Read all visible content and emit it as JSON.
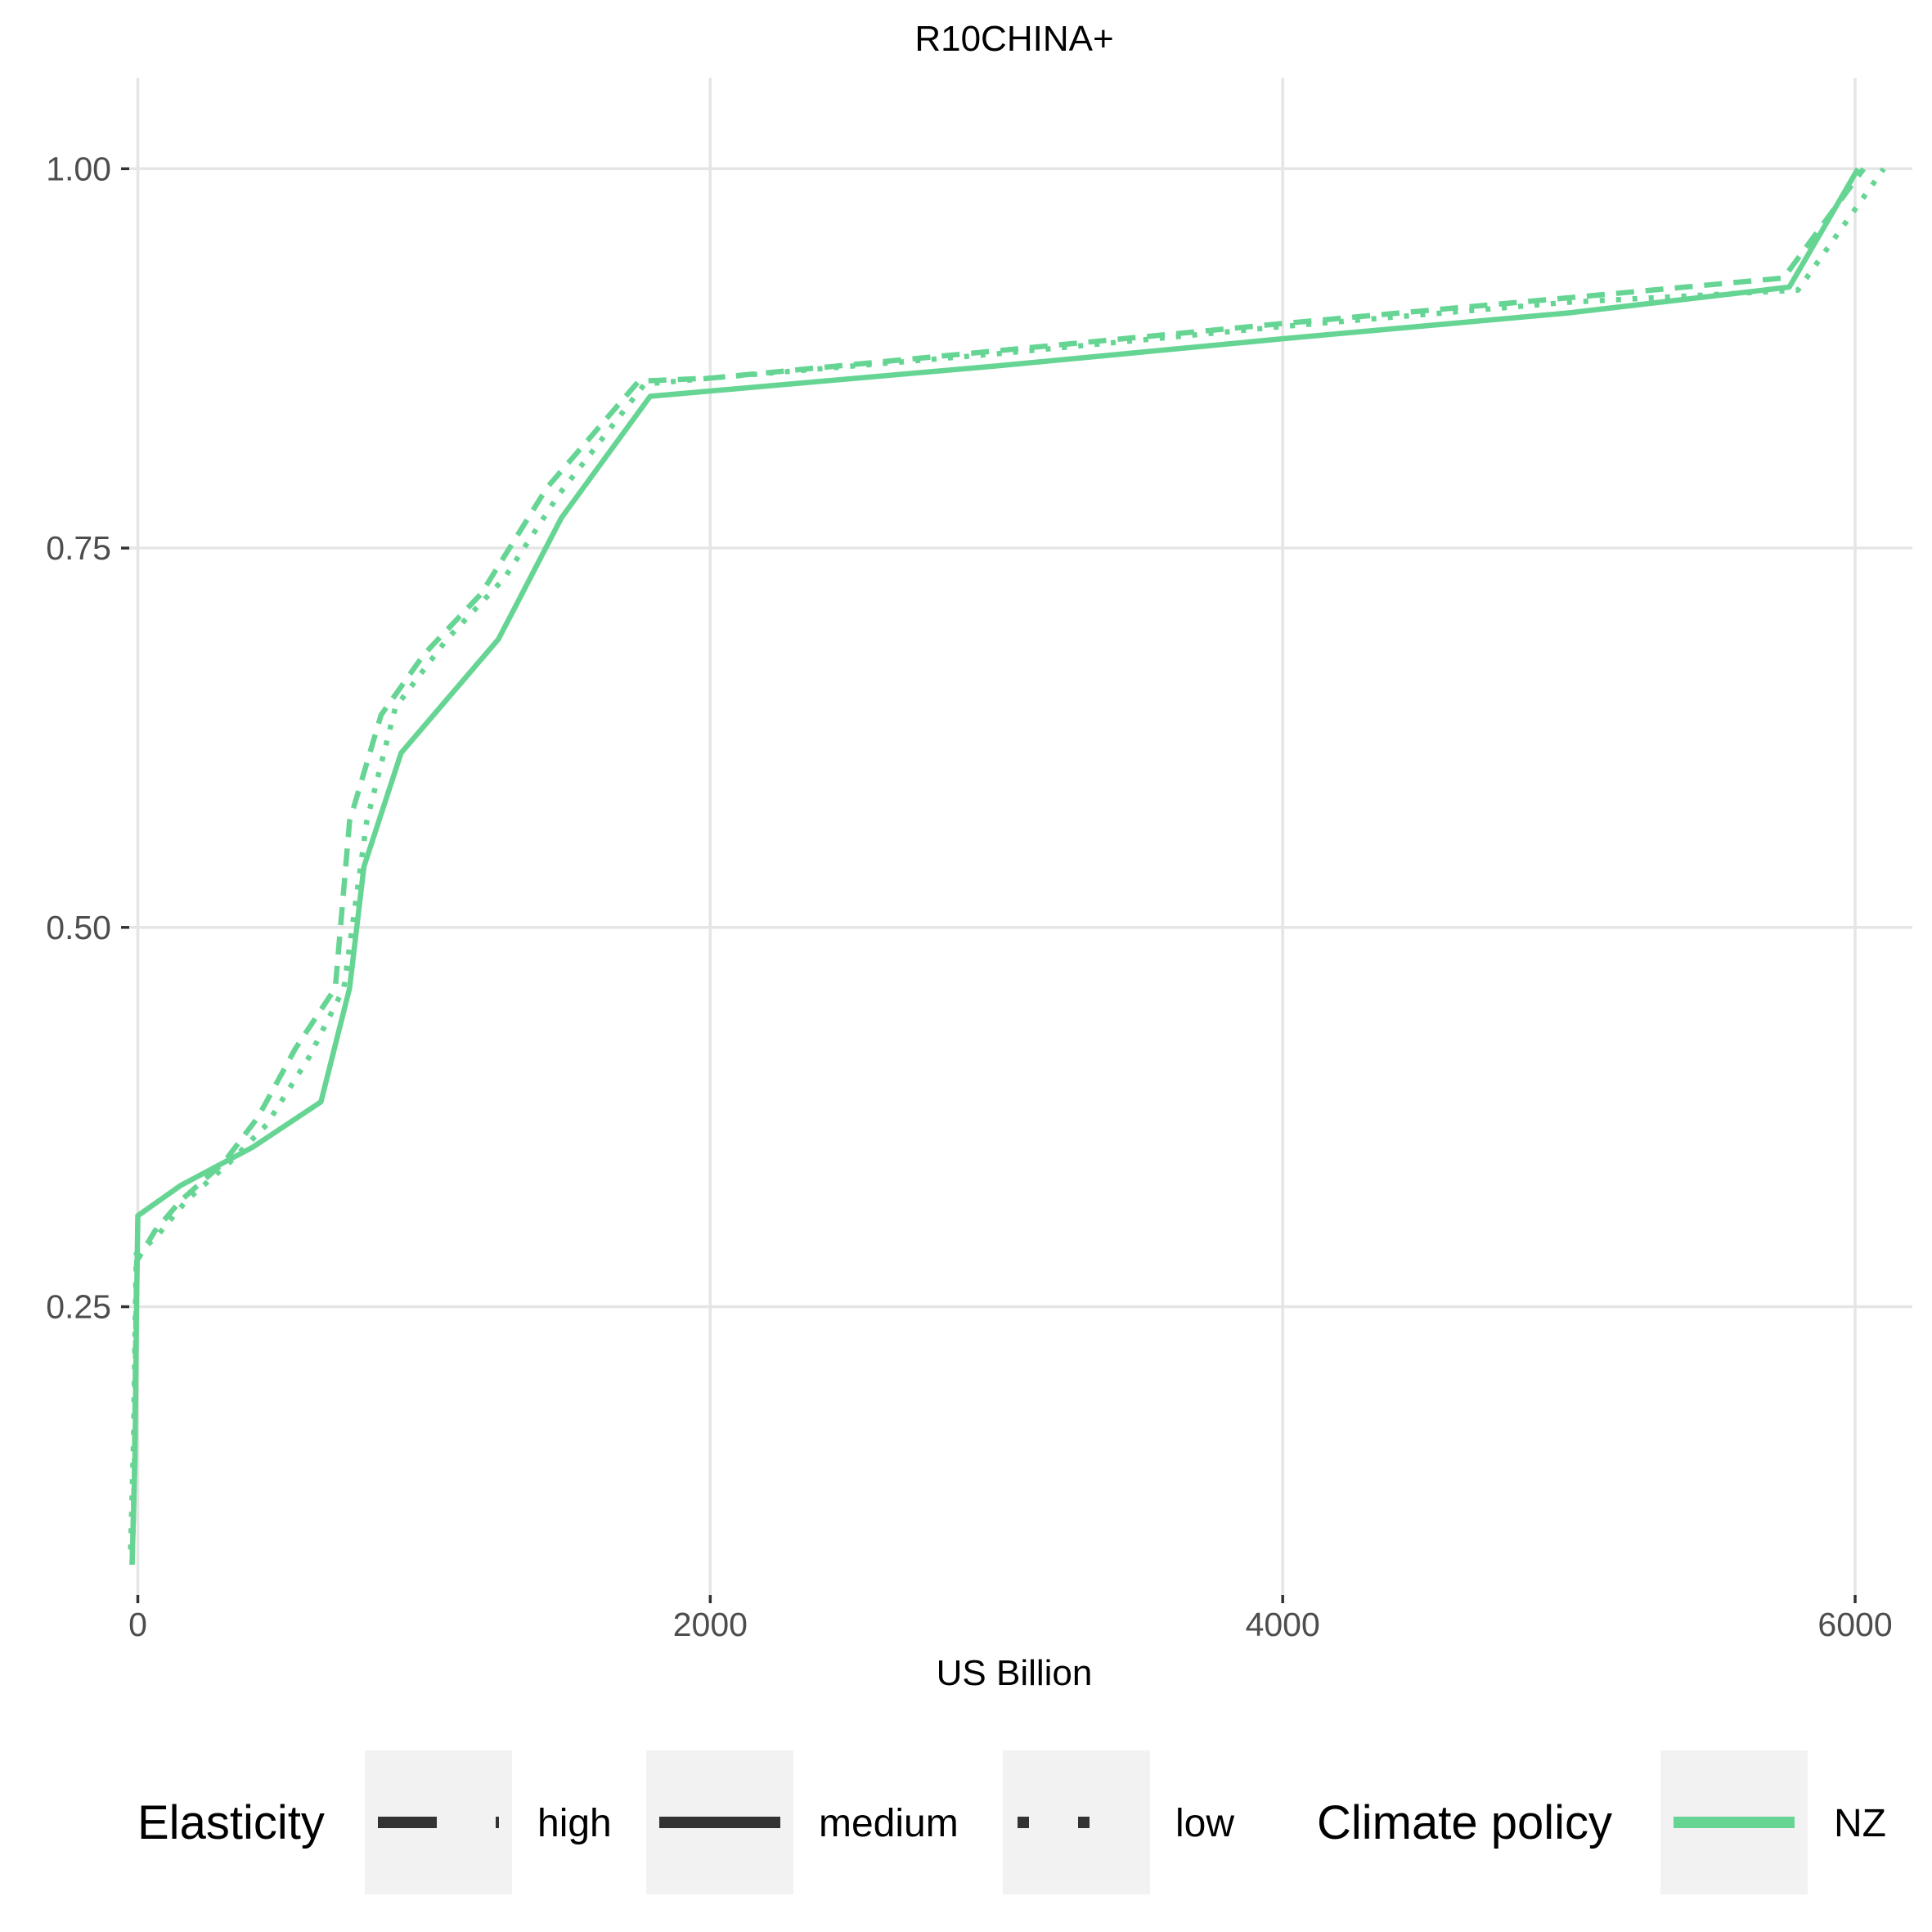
{
  "chart_data": {
    "type": "line",
    "title": "R10CHINA+",
    "xlabel": "US Billion",
    "ylabel": "",
    "xlim": [
      -30,
      6200
    ],
    "ylim": [
      0.06,
      1.06
    ],
    "x_ticks": [
      0,
      2000,
      4000,
      6000
    ],
    "x_tick_labels": [
      "0",
      "2000",
      "4000",
      "6000"
    ],
    "y_ticks": [
      0.25,
      0.5,
      0.75,
      1.0
    ],
    "y_tick_labels": [
      "0.25",
      "0.50",
      "0.75",
      "1.00"
    ],
    "grid": true,
    "legend_position": "bottom",
    "color": "#66d594",
    "series": [
      {
        "name": "high",
        "elasticity": "high",
        "climate_policy": "NZ",
        "linetype": "dashed",
        "points": [
          [
            -20,
            0.08
          ],
          [
            -12,
            0.14
          ],
          [
            -8,
            0.22
          ],
          [
            -4,
            0.28
          ],
          [
            60,
            0.3
          ],
          [
            150,
            0.32
          ],
          [
            300,
            0.345
          ],
          [
            420,
            0.375
          ],
          [
            550,
            0.42
          ],
          [
            690,
            0.46
          ],
          [
            740,
            0.57
          ],
          [
            850,
            0.64
          ],
          [
            1000,
            0.68
          ],
          [
            1200,
            0.72
          ],
          [
            1430,
            0.79
          ],
          [
            1750,
            0.86
          ],
          [
            2000,
            0.862
          ],
          [
            3000,
            0.88
          ],
          [
            4000,
            0.898
          ],
          [
            5000,
            0.915
          ],
          [
            5750,
            0.928
          ],
          [
            6030,
            1.0
          ]
        ]
      },
      {
        "name": "medium",
        "elasticity": "medium",
        "climate_policy": "NZ",
        "linetype": "solid",
        "points": [
          [
            -20,
            0.08
          ],
          [
            -10,
            0.15
          ],
          [
            -5,
            0.24
          ],
          [
            0,
            0.31
          ],
          [
            150,
            0.33
          ],
          [
            400,
            0.355
          ],
          [
            640,
            0.385
          ],
          [
            740,
            0.46
          ],
          [
            790,
            0.54
          ],
          [
            920,
            0.615
          ],
          [
            1260,
            0.69
          ],
          [
            1480,
            0.77
          ],
          [
            1790,
            0.85
          ],
          [
            3000,
            0.87
          ],
          [
            4000,
            0.888
          ],
          [
            5000,
            0.905
          ],
          [
            5770,
            0.922
          ],
          [
            6010,
            1.0
          ]
        ]
      },
      {
        "name": "low",
        "elasticity": "low",
        "climate_policy": "NZ",
        "linetype": "dotted",
        "points": [
          [
            -25,
            0.09
          ],
          [
            -15,
            0.16
          ],
          [
            -10,
            0.23
          ],
          [
            -5,
            0.285
          ],
          [
            60,
            0.295
          ],
          [
            170,
            0.32
          ],
          [
            320,
            0.345
          ],
          [
            450,
            0.37
          ],
          [
            600,
            0.415
          ],
          [
            720,
            0.46
          ],
          [
            800,
            0.57
          ],
          [
            900,
            0.645
          ],
          [
            1080,
            0.69
          ],
          [
            1280,
            0.73
          ],
          [
            1470,
            0.785
          ],
          [
            1770,
            0.858
          ],
          [
            2000,
            0.862
          ],
          [
            3000,
            0.878
          ],
          [
            4000,
            0.896
          ],
          [
            5000,
            0.912
          ],
          [
            5800,
            0.92
          ],
          [
            6100,
            1.0
          ]
        ]
      }
    ]
  },
  "legend": {
    "elasticity_title": "Elasticity",
    "elasticity_items": [
      "high",
      "medium",
      "low"
    ],
    "policy_title": "Climate policy",
    "policy_items": [
      "NZ"
    ]
  }
}
